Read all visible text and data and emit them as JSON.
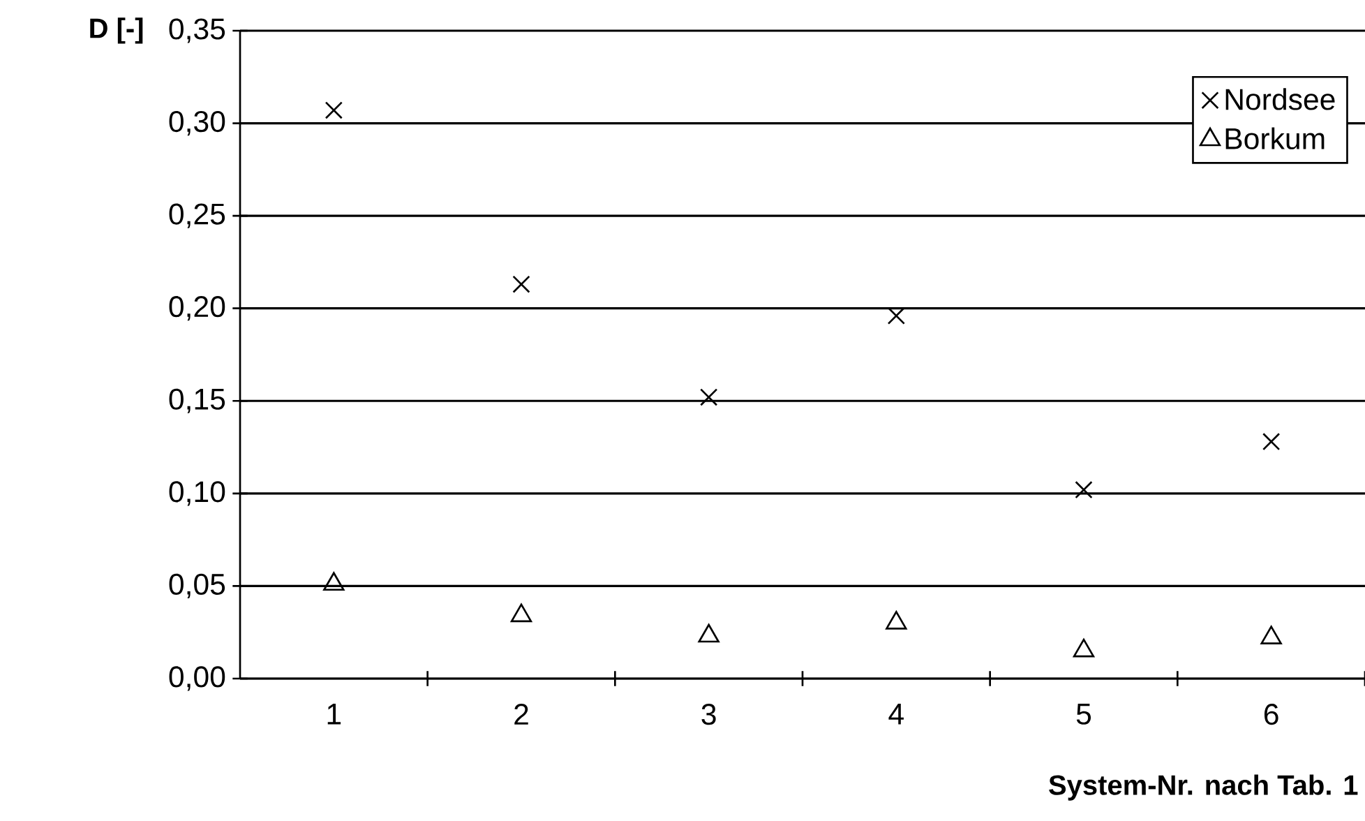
{
  "chart_data": {
    "type": "scatter",
    "xlabel": "System-Nr. nach Tab. 1",
    "ylabel": "D [-]",
    "categories": [
      "1",
      "2",
      "3",
      "4",
      "5",
      "6"
    ],
    "series": [
      {
        "name": "Nordsee",
        "color": "#000000",
        "marker": "cross",
        "values": [
          0.307,
          0.213,
          0.152,
          0.196,
          0.102,
          0.128
        ]
      },
      {
        "name": "Borkum",
        "color": "#000000",
        "marker": "triangle",
        "values": [
          0.051,
          0.034,
          0.023,
          0.03,
          0.015,
          0.022
        ]
      }
    ],
    "ylim": [
      0,
      0.35
    ],
    "yticks": [
      {
        "value": 0,
        "label": "0,00"
      },
      {
        "value": 0.05,
        "label": "0,05"
      },
      {
        "value": 0.1,
        "label": "0,10"
      },
      {
        "value": 0.15,
        "label": "0,15"
      },
      {
        "value": 0.2,
        "label": "0,20"
      },
      {
        "value": 0.25,
        "label": "0,25"
      },
      {
        "value": 0.3,
        "label": "0,30"
      },
      {
        "value": 0.35,
        "label": "0,35"
      }
    ],
    "grid": "y",
    "legend": "top right"
  }
}
